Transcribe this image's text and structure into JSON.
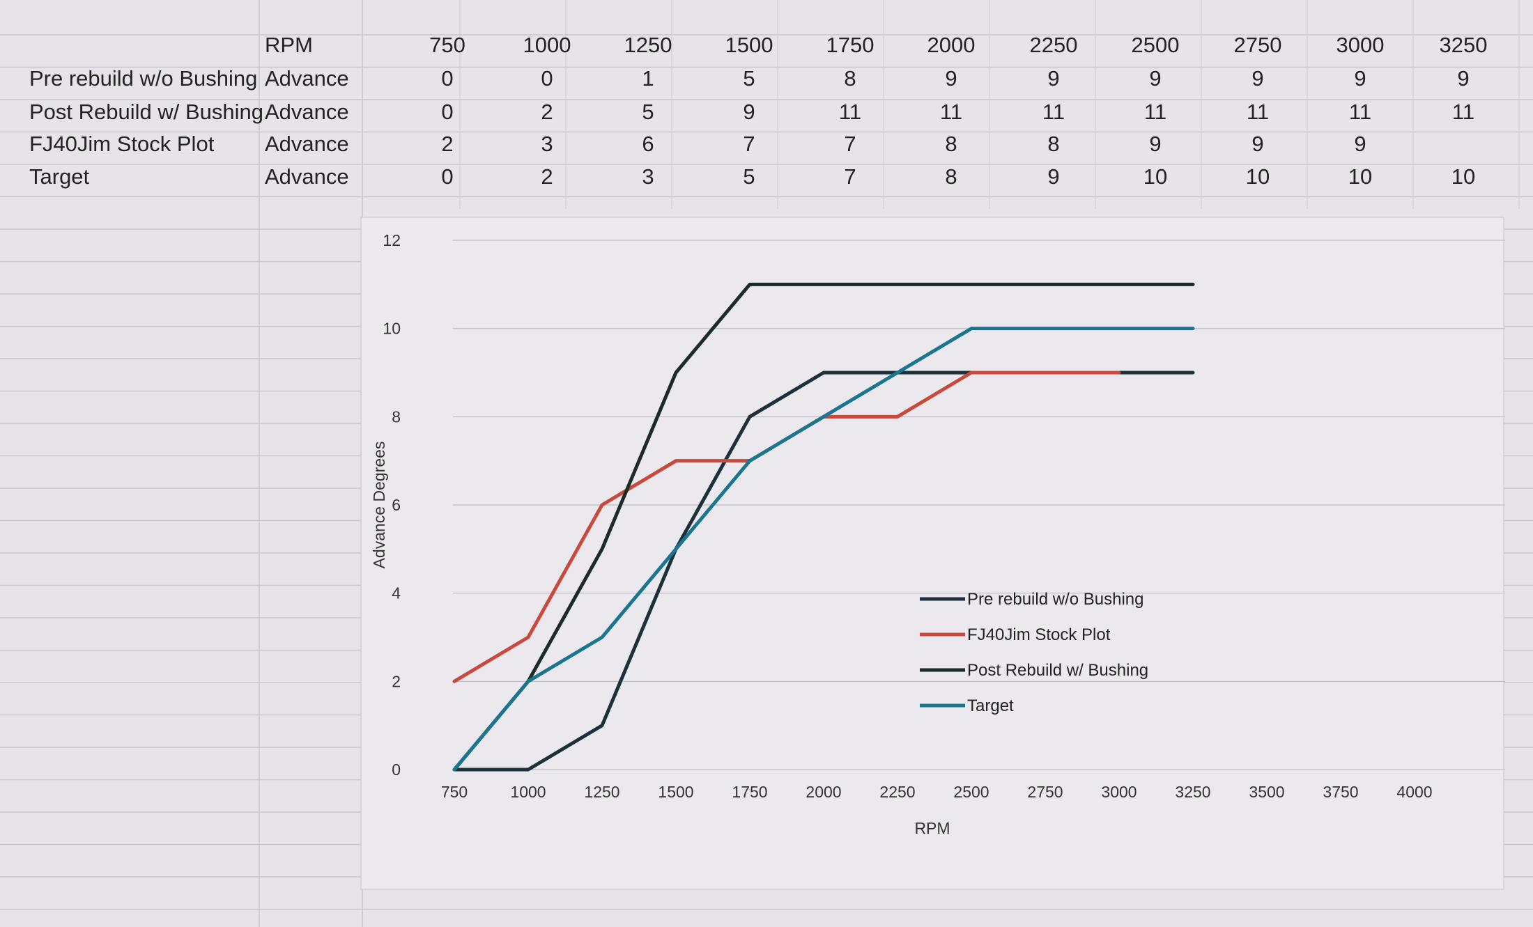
{
  "table": {
    "header_label": "RPM",
    "rpm": [
      "750",
      "1000",
      "1250",
      "1500",
      "1750",
      "2000",
      "2250",
      "2500",
      "2750",
      "3000",
      "3250"
    ],
    "rows": [
      {
        "name": "Pre rebuild w/o Bushing",
        "unit": "Advance",
        "values": [
          "0",
          "0",
          "1",
          "5",
          "8",
          "9",
          "9",
          "9",
          "9",
          "9",
          "9"
        ]
      },
      {
        "name": "Post Rebuild w/ Bushing",
        "unit": "Advance",
        "values": [
          "0",
          "2",
          "5",
          "9",
          "11",
          "11",
          "11",
          "11",
          "11",
          "11",
          "11"
        ]
      },
      {
        "name": "FJ40Jim Stock Plot",
        "unit": "Advance",
        "values": [
          "2",
          "3",
          "6",
          "7",
          "7",
          "8",
          "8",
          "9",
          "9",
          "9",
          ""
        ]
      },
      {
        "name": "Target",
        "unit": "Advance",
        "values": [
          "0",
          "2",
          "3",
          "5",
          "7",
          "8",
          "9",
          "10",
          "10",
          "10",
          "10"
        ]
      }
    ]
  },
  "chart_data": {
    "type": "line",
    "xlabel": "RPM",
    "ylabel": "Advance Degrees",
    "x_ticks": [
      "750",
      "1000",
      "1250",
      "1500",
      "1750",
      "2000",
      "2250",
      "2500",
      "2750",
      "3000",
      "3250",
      "3500",
      "3750",
      "4000"
    ],
    "y_ticks": [
      "0",
      "2",
      "4",
      "6",
      "8",
      "10",
      "12"
    ],
    "ylim": [
      0,
      12
    ],
    "grid": true,
    "legend_position": "lower-right",
    "x": [
      750,
      1000,
      1250,
      1500,
      1750,
      2000,
      2250,
      2500,
      2750,
      3000,
      3250
    ],
    "series": [
      {
        "name": "Pre rebuild w/o Bushing",
        "color": "#1b3038",
        "values": [
          0,
          0,
          1,
          5,
          8,
          9,
          9,
          9,
          9,
          9,
          9
        ]
      },
      {
        "name": "FJ40Jim Stock Plot",
        "color": "#c9493d",
        "values": [
          2,
          3,
          6,
          7,
          7,
          8,
          8,
          9,
          9,
          9,
          null
        ]
      },
      {
        "name": "Post Rebuild w/ Bushing",
        "color": "#1c2b27",
        "values": [
          0,
          2,
          5,
          9,
          11,
          11,
          11,
          11,
          11,
          11,
          11
        ]
      },
      {
        "name": "Target",
        "color": "#1a7690",
        "values": [
          0,
          2,
          3,
          5,
          7,
          8,
          9,
          10,
          10,
          10,
          10
        ]
      }
    ]
  }
}
